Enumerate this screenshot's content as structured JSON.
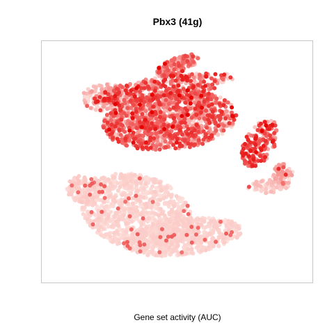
{
  "chart_data": {
    "type": "scatter",
    "title": "Pbx3 (41g)",
    "xlabel": "Gene set activity (AUC)",
    "ylabel": "",
    "xlim": [
      0,
      100
    ],
    "ylim": [
      0,
      100
    ],
    "grid": false,
    "legend": "none",
    "axes_visible": false,
    "color_scale": {
      "low": "#fde0dc",
      "high": "#e60000"
    },
    "frame_color": "#c8c8c8",
    "clusters": [
      {
        "name": "",
        "cx": 34,
        "cy": 72,
        "rx": 22,
        "ry": 16,
        "rot": 20,
        "n": 950,
        "activity_mean": 0.04,
        "activity_spread": 0.05,
        "seed": 11
      },
      {
        "name": "",
        "cx": 52,
        "cy": 83,
        "rx": 23,
        "ry": 8,
        "rot": -8,
        "n": 650,
        "activity_mean": 0.04,
        "activity_spread": 0.05,
        "seed": 23
      },
      {
        "name": "",
        "cx": 14,
        "cy": 62,
        "rx": 7,
        "ry": 6,
        "rot": 0,
        "n": 140,
        "activity_mean": 0.05,
        "activity_spread": 0.06,
        "seed": 31
      },
      {
        "name": "",
        "cx": 47,
        "cy": 32,
        "rx": 26,
        "ry": 13,
        "rot": -6,
        "n": 1200,
        "activity_mean": 0.4,
        "activity_spread": 0.4,
        "seed": 47
      },
      {
        "name": "",
        "cx": 44,
        "cy": 18,
        "rx": 28,
        "ry": 5,
        "rot": -10,
        "n": 380,
        "activity_mean": 0.45,
        "activity_spread": 0.45,
        "seed": 53
      },
      {
        "name": "",
        "cx": 82,
        "cy": 42,
        "rx": 6,
        "ry": 11,
        "rot": 25,
        "n": 180,
        "activity_mean": 0.5,
        "activity_spread": 0.4,
        "seed": 61
      },
      {
        "name": "",
        "cx": 91,
        "cy": 56,
        "rx": 4,
        "ry": 5,
        "rot": 0,
        "n": 90,
        "activity_mean": 0.15,
        "activity_spread": 0.2,
        "seed": 71
      },
      {
        "name": "",
        "cx": 85,
        "cy": 61,
        "rx": 8,
        "ry": 3,
        "rot": 0,
        "n": 70,
        "activity_mean": 0.08,
        "activity_spread": 0.1,
        "seed": 73
      },
      {
        "name": "",
        "cx": 22,
        "cy": 22,
        "rx": 9,
        "ry": 6,
        "rot": 0,
        "n": 130,
        "activity_mean": 0.12,
        "activity_spread": 0.2,
        "seed": 79
      },
      {
        "name": "",
        "cx": 50,
        "cy": 8,
        "rx": 9,
        "ry": 3.5,
        "rot": -25,
        "n": 170,
        "activity_mean": 0.35,
        "activity_spread": 0.35,
        "seed": 83
      }
    ]
  }
}
